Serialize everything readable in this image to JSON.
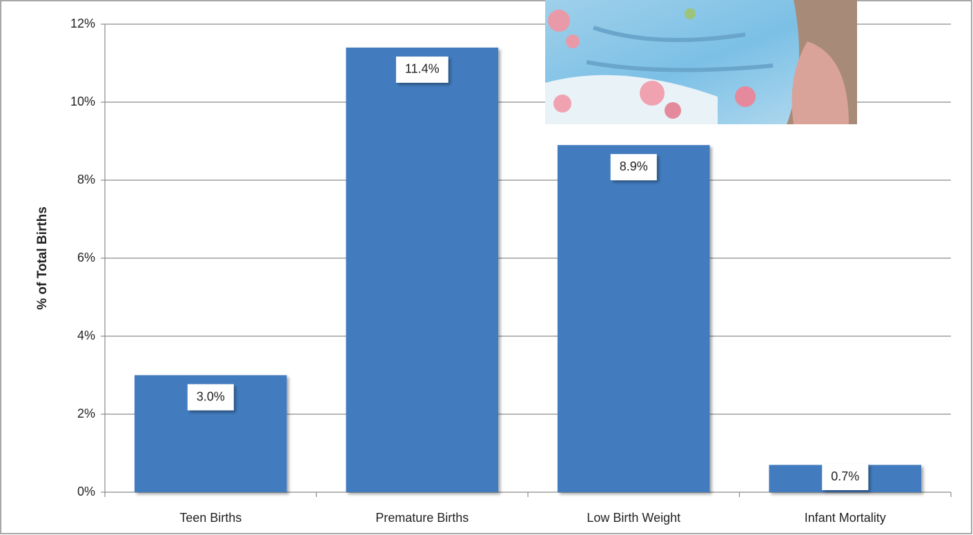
{
  "chart_data": {
    "type": "bar",
    "y_label": "% of Total Births",
    "categories": [
      "Teen Births",
      "Premature Births",
      "Low Birth Weight",
      "Infant Mortality"
    ],
    "values": [
      3.0,
      11.4,
      8.9,
      0.7
    ],
    "value_labels": [
      "3.0%",
      "11.4%",
      "8.9%",
      "0.7%"
    ],
    "color": "#427cbf",
    "ylim": [
      0,
      12
    ],
    "yticks": [
      {
        "value": 0,
        "label": "0%"
      },
      {
        "value": 2,
        "label": "2%"
      },
      {
        "value": 4,
        "label": "4%"
      },
      {
        "value": 6,
        "label": "6%"
      },
      {
        "value": 8,
        "label": "8%"
      },
      {
        "value": 10,
        "label": "10%"
      },
      {
        "value": 12,
        "label": "12%"
      }
    ],
    "grid": true
  }
}
